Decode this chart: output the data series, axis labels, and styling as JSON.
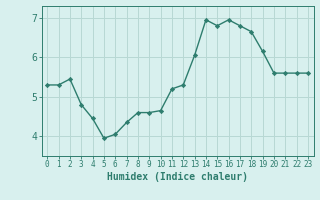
{
  "x": [
    0,
    1,
    2,
    3,
    4,
    5,
    6,
    7,
    8,
    9,
    10,
    11,
    12,
    13,
    14,
    15,
    16,
    17,
    18,
    19,
    20,
    21,
    22,
    23
  ],
  "y": [
    5.3,
    5.3,
    5.45,
    4.8,
    4.45,
    3.95,
    4.05,
    4.35,
    4.6,
    4.6,
    4.65,
    5.2,
    5.3,
    6.05,
    6.95,
    6.8,
    6.95,
    6.8,
    6.65,
    6.15,
    5.6,
    5.6,
    5.6,
    5.6
  ],
  "line_color": "#2e7d6e",
  "marker": "D",
  "marker_size": 2.2,
  "bg_color": "#d8f0ee",
  "grid_color": "#b8d8d4",
  "xlabel": "Humidex (Indice chaleur)",
  "ylim": [
    3.5,
    7.3
  ],
  "xlim": [
    -0.5,
    23.5
  ],
  "yticks": [
    4,
    5,
    6,
    7
  ],
  "xticks": [
    0,
    1,
    2,
    3,
    4,
    5,
    6,
    7,
    8,
    9,
    10,
    11,
    12,
    13,
    14,
    15,
    16,
    17,
    18,
    19,
    20,
    21,
    22,
    23
  ],
  "figsize": [
    3.2,
    2.0
  ],
  "dpi": 100,
  "xlabel_fontsize": 7,
  "xtick_fontsize": 5.5,
  "ytick_fontsize": 7
}
